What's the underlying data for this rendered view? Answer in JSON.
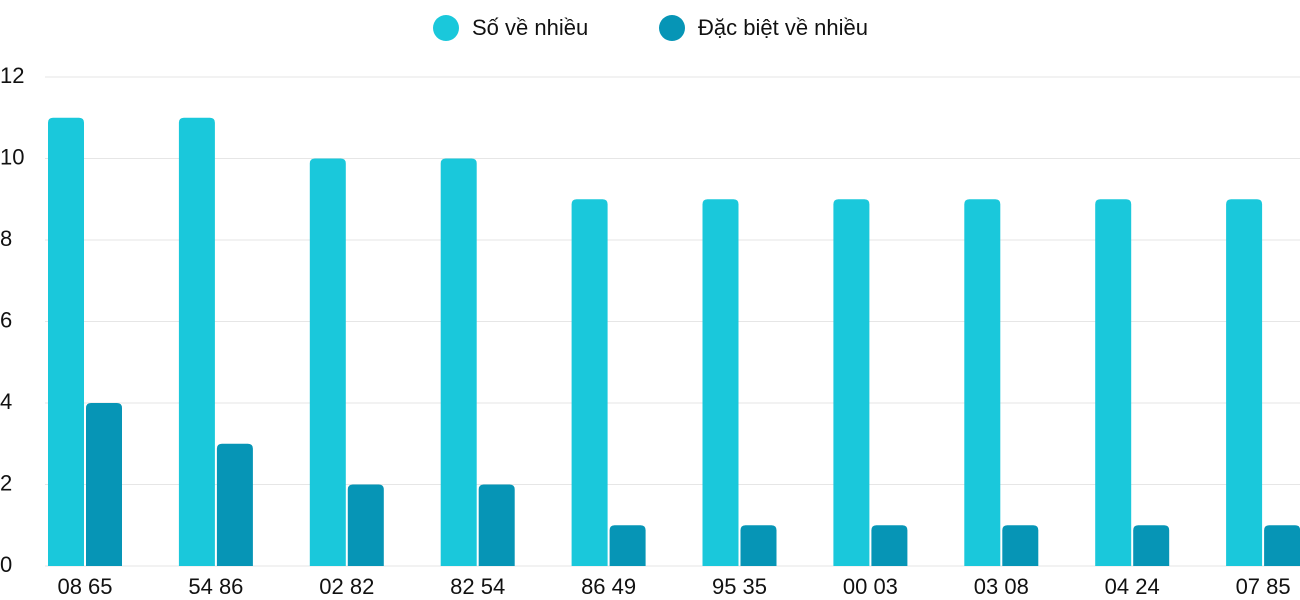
{
  "chart_data": {
    "type": "bar",
    "categories": [
      "08 65",
      "54 86",
      "02 82",
      "82 54",
      "86 49",
      "95 35",
      "00 03",
      "03 08",
      "04 24",
      "07 85"
    ],
    "series": [
      {
        "name": "Số về nhiều",
        "color": "#1ac8db",
        "values": [
          11,
          11,
          10,
          10,
          9,
          9,
          9,
          9,
          9,
          9
        ]
      },
      {
        "name": "Đặc biệt về nhiều",
        "color": "#0695b6",
        "values": [
          4,
          3,
          2,
          2,
          1,
          1,
          1,
          1,
          1,
          1
        ]
      }
    ],
    "ylim": [
      0,
      12
    ],
    "yticks": [
      0,
      2,
      4,
      6,
      8,
      10,
      12
    ],
    "grid": true
  }
}
